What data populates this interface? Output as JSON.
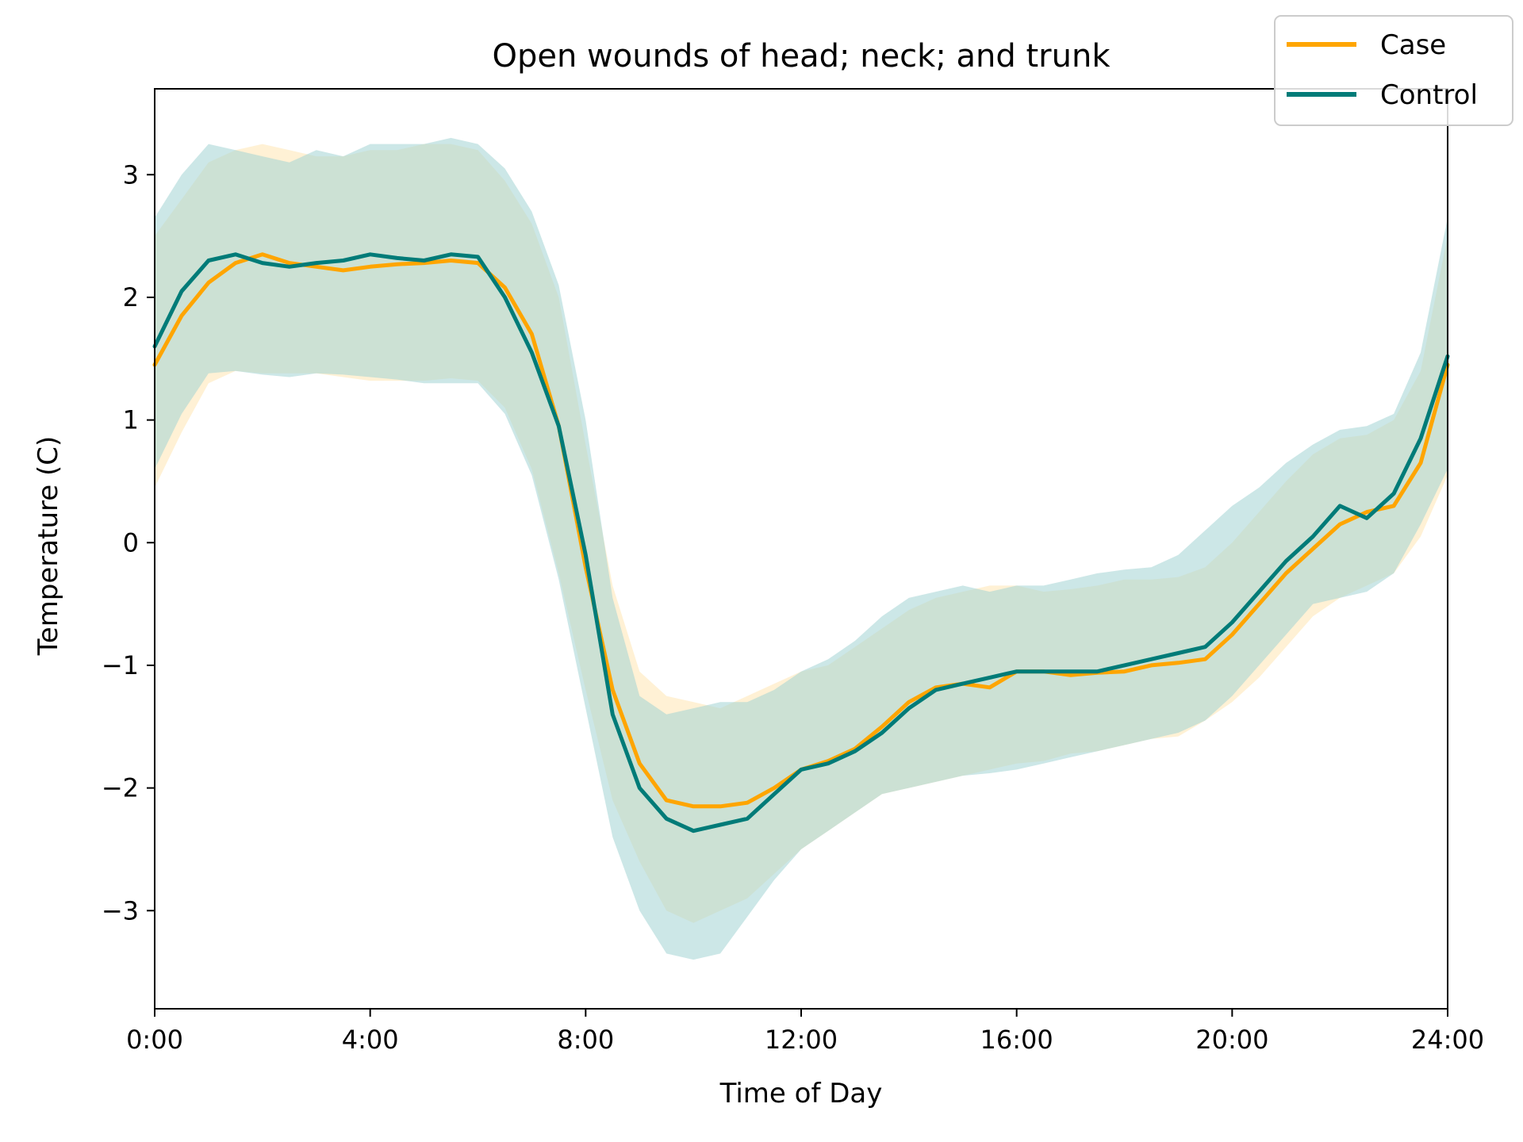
{
  "chart_data": {
    "type": "line",
    "title": "Open wounds of head; neck; and trunk",
    "xlabel": "Time of Day",
    "ylabel": "Temperature (C)",
    "xlim": [
      0,
      24
    ],
    "ylim": [
      -3.8,
      3.7
    ],
    "grid": false,
    "legend_position": "top-right",
    "x_ticks": [
      {
        "value": 0,
        "label": "0:00"
      },
      {
        "value": 4,
        "label": "4:00"
      },
      {
        "value": 8,
        "label": "8:00"
      },
      {
        "value": 12,
        "label": "12:00"
      },
      {
        "value": 16,
        "label": "16:00"
      },
      {
        "value": 20,
        "label": "20:00"
      },
      {
        "value": 24,
        "label": "24:00"
      }
    ],
    "y_ticks": [
      {
        "value": 3,
        "label": "3"
      },
      {
        "value": 2,
        "label": "2"
      },
      {
        "value": 1,
        "label": "1"
      },
      {
        "value": 0,
        "label": "0"
      },
      {
        "value": -1,
        "label": "−1"
      },
      {
        "value": -2,
        "label": "−2"
      },
      {
        "value": -3,
        "label": "−3"
      }
    ],
    "x": [
      0,
      0.5,
      1,
      1.5,
      2,
      2.5,
      3,
      3.5,
      4,
      4.5,
      5,
      5.5,
      6,
      6.5,
      7,
      7.5,
      8,
      8.5,
      9,
      9.5,
      10,
      10.5,
      11,
      11.5,
      12,
      12.5,
      13,
      13.5,
      14,
      14.5,
      15,
      15.5,
      16,
      16.5,
      17,
      17.5,
      18,
      18.5,
      19,
      19.5,
      20,
      20.5,
      21,
      21.5,
      22,
      22.5,
      23,
      23.5,
      24
    ],
    "series": [
      {
        "name": "Case",
        "color": "#FFA500",
        "band_color": "#FFE6B3",
        "values": [
          1.45,
          1.85,
          2.12,
          2.28,
          2.35,
          2.28,
          2.25,
          2.22,
          2.25,
          2.27,
          2.28,
          2.3,
          2.28,
          2.08,
          1.7,
          0.95,
          -0.2,
          -1.2,
          -1.8,
          -2.1,
          -2.15,
          -2.15,
          -2.12,
          -2.0,
          -1.85,
          -1.78,
          -1.68,
          -1.5,
          -1.3,
          -1.18,
          -1.15,
          -1.18,
          -1.05,
          -1.05,
          -1.08,
          -1.06,
          -1.05,
          -1.0,
          -0.98,
          -0.95,
          -0.75,
          -0.5,
          -0.25,
          -0.05,
          0.15,
          0.25,
          0.3,
          0.65,
          1.45
        ],
        "lower": [
          0.45,
          0.9,
          1.3,
          1.4,
          1.38,
          1.38,
          1.38,
          1.35,
          1.32,
          1.32,
          1.32,
          1.34,
          1.32,
          1.1,
          0.6,
          -0.25,
          -1.2,
          -2.1,
          -2.6,
          -3.0,
          -3.1,
          -3.0,
          -2.9,
          -2.7,
          -2.5,
          -2.35,
          -2.2,
          -2.05,
          -2.0,
          -1.95,
          -1.9,
          -1.85,
          -1.8,
          -1.78,
          -1.72,
          -1.7,
          -1.65,
          -1.6,
          -1.58,
          -1.45,
          -1.3,
          -1.1,
          -0.85,
          -0.6,
          -0.45,
          -0.35,
          -0.25,
          0.05,
          0.55
        ],
        "upper": [
          2.5,
          2.8,
          3.1,
          3.2,
          3.25,
          3.2,
          3.15,
          3.15,
          3.2,
          3.2,
          3.25,
          3.25,
          3.2,
          2.95,
          2.6,
          2.0,
          0.8,
          -0.35,
          -1.05,
          -1.25,
          -1.3,
          -1.35,
          -1.25,
          -1.15,
          -1.05,
          -1.0,
          -0.85,
          -0.7,
          -0.55,
          -0.45,
          -0.4,
          -0.35,
          -0.35,
          -0.4,
          -0.38,
          -0.35,
          -0.3,
          -0.3,
          -0.28,
          -0.2,
          0.0,
          0.25,
          0.5,
          0.72,
          0.85,
          0.88,
          1.0,
          1.4,
          2.5
        ]
      },
      {
        "name": "Control",
        "color": "#007B78",
        "band_color": "#A3D4D3",
        "values": [
          1.6,
          2.05,
          2.3,
          2.35,
          2.28,
          2.25,
          2.28,
          2.3,
          2.35,
          2.32,
          2.3,
          2.35,
          2.33,
          2.0,
          1.55,
          0.95,
          -0.1,
          -1.4,
          -2.0,
          -2.25,
          -2.35,
          -2.3,
          -2.25,
          -2.05,
          -1.85,
          -1.8,
          -1.7,
          -1.55,
          -1.35,
          -1.2,
          -1.15,
          -1.1,
          -1.05,
          -1.05,
          -1.05,
          -1.05,
          -1.0,
          -0.95,
          -0.9,
          -0.85,
          -0.65,
          -0.4,
          -0.15,
          0.05,
          0.3,
          0.2,
          0.4,
          0.85,
          1.52
        ],
        "lower": [
          0.6,
          1.05,
          1.38,
          1.4,
          1.37,
          1.35,
          1.38,
          1.37,
          1.35,
          1.33,
          1.3,
          1.3,
          1.3,
          1.05,
          0.55,
          -0.3,
          -1.35,
          -2.4,
          -3.0,
          -3.35,
          -3.4,
          -3.35,
          -3.05,
          -2.75,
          -2.5,
          -2.35,
          -2.2,
          -2.05,
          -2.0,
          -1.95,
          -1.9,
          -1.88,
          -1.85,
          -1.8,
          -1.75,
          -1.7,
          -1.65,
          -1.6,
          -1.55,
          -1.45,
          -1.25,
          -1.0,
          -0.75,
          -0.5,
          -0.45,
          -0.4,
          -0.25,
          0.15,
          0.6
        ],
        "upper": [
          2.65,
          3.0,
          3.25,
          3.2,
          3.15,
          3.1,
          3.2,
          3.15,
          3.25,
          3.25,
          3.25,
          3.3,
          3.25,
          3.05,
          2.7,
          2.1,
          1.0,
          -0.45,
          -1.25,
          -1.4,
          -1.35,
          -1.3,
          -1.3,
          -1.2,
          -1.05,
          -0.95,
          -0.8,
          -0.6,
          -0.45,
          -0.4,
          -0.35,
          -0.4,
          -0.35,
          -0.35,
          -0.3,
          -0.25,
          -0.22,
          -0.2,
          -0.1,
          0.1,
          0.3,
          0.45,
          0.65,
          0.8,
          0.92,
          0.95,
          1.05,
          1.55,
          2.65
        ]
      }
    ]
  }
}
